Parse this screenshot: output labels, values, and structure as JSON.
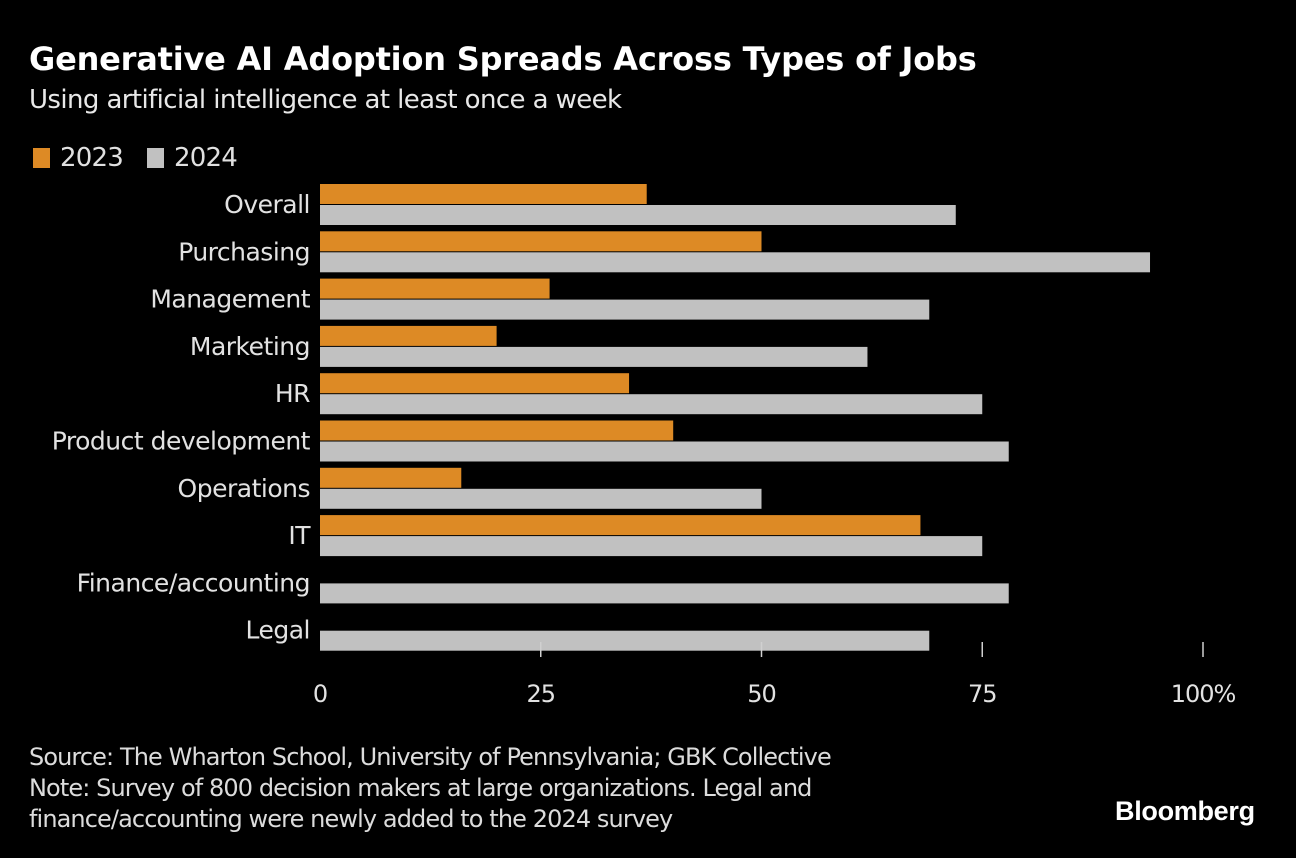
{
  "header": {
    "title": "Generative AI Adoption Spreads Across Types of Jobs",
    "subtitle": "Using artificial intelligence at least once a week"
  },
  "legend": [
    {
      "label": "2023",
      "color": "#dd8a25"
    },
    {
      "label": "2024",
      "color": "#c1c1c1"
    }
  ],
  "chart_data": {
    "type": "bar",
    "orientation": "horizontal",
    "title": "Generative AI Adoption Spreads Across Types of Jobs",
    "subtitle": "Using artificial intelligence at least once a week",
    "xlabel": "",
    "ylabel": "",
    "unit": "%",
    "xlim": [
      0,
      100
    ],
    "x_ticks": [
      0,
      25,
      50,
      75,
      100
    ],
    "x_tick_labels": [
      "0",
      "25",
      "50",
      "75",
      "100%"
    ],
    "grid": false,
    "legend_position": "top-left",
    "categories": [
      "Overall",
      "Purchasing",
      "Management",
      "Marketing",
      "HR",
      "Product development",
      "Operations",
      "IT",
      "Finance/accounting",
      "Legal"
    ],
    "series": [
      {
        "name": "2023",
        "color": "#dd8a25",
        "values": [
          37,
          50,
          26,
          20,
          35,
          40,
          16,
          68,
          null,
          null
        ]
      },
      {
        "name": "2024",
        "color": "#c1c1c1",
        "values": [
          72,
          94,
          69,
          62,
          75,
          78,
          50,
          75,
          78,
          69
        ]
      }
    ]
  },
  "footer": {
    "source": "Source: The Wharton School, University of Pennsylvania; GBK Collective",
    "note_line1": "Note: Survey of 800 decision makers at large organizations. Legal and",
    "note_line2": "finance/accounting were newly added to the 2024 survey"
  },
  "brand": "Bloomberg"
}
